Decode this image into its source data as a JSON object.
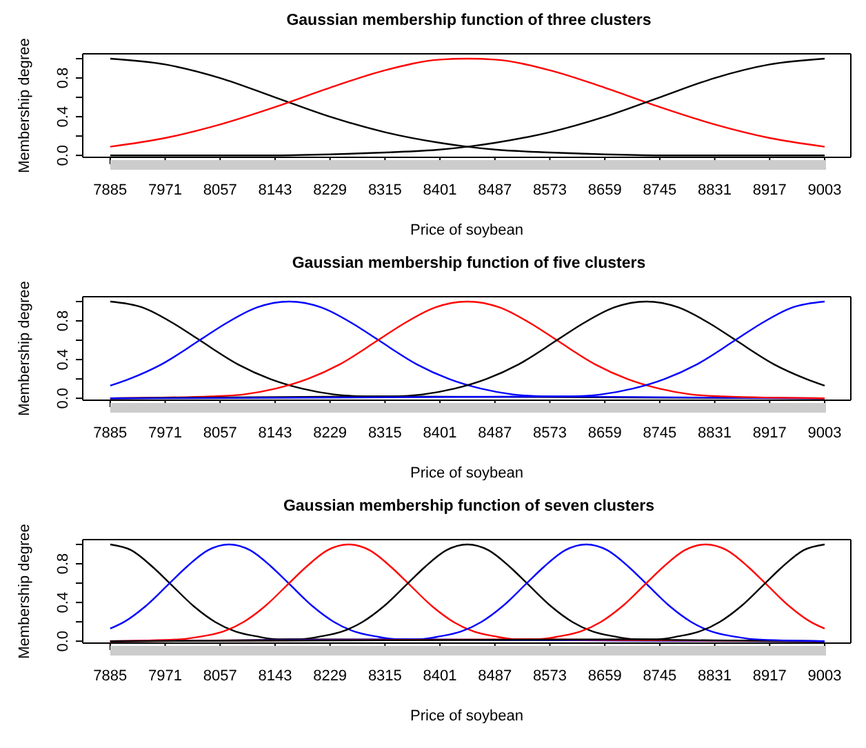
{
  "chart_data": [
    {
      "type": "line",
      "title": "Gaussian membership function of three clusters",
      "xlabel": "Price of soybean",
      "ylabel": "Membership degree",
      "xlim": [
        7842,
        9044
      ],
      "xticks": [
        7885,
        7971,
        8057,
        8143,
        8229,
        8315,
        8401,
        8487,
        8573,
        8659,
        8745,
        8831,
        8917,
        9003
      ],
      "ylim": [
        -0.02,
        1.05
      ],
      "yticks": [
        {
          "value": 0,
          "label": "0.0"
        },
        {
          "value": 0.2,
          "label": null
        },
        {
          "value": 0.4,
          "label": "0.4"
        },
        {
          "value": 0.6,
          "label": null
        },
        {
          "value": 0.8,
          "label": "0.8"
        },
        {
          "value": 1,
          "label": null
        }
      ],
      "series": [
        {
          "color": "#000000",
          "x": [
            7885,
            7971,
            8057,
            8143,
            8229,
            8315,
            8401,
            8444,
            8487,
            8573,
            8659,
            8745,
            8831,
            8917,
            9003
          ],
          "values": [
            1,
            0.94,
            0.8,
            0.6,
            0.4,
            0.24,
            0.13,
            0.09,
            0.06,
            0.03,
            0.01,
            0,
            0,
            0,
            0
          ]
        },
        {
          "color": "#ff0000",
          "x": [
            7885,
            7971,
            8057,
            8143,
            8229,
            8315,
            8401,
            8444,
            8487,
            8573,
            8659,
            8745,
            8831,
            8917,
            9003
          ],
          "values": [
            0.09,
            0.18,
            0.32,
            0.5,
            0.7,
            0.88,
            0.99,
            1,
            0.99,
            0.88,
            0.7,
            0.5,
            0.32,
            0.18,
            0.09
          ]
        },
        {
          "color": "#000000",
          "x": [
            7885,
            7971,
            8057,
            8143,
            8229,
            8315,
            8401,
            8444,
            8487,
            8573,
            8659,
            8745,
            8831,
            8917,
            9003
          ],
          "values": [
            0,
            0,
            0,
            0,
            0.01,
            0.03,
            0.06,
            0.09,
            0.13,
            0.24,
            0.4,
            0.6,
            0.8,
            0.94,
            1
          ]
        }
      ]
    },
    {
      "type": "line",
      "title": "Gaussian membership function of five clusters",
      "xlabel": "Price of soybean",
      "ylabel": "Membership degree",
      "xlim": [
        7842,
        9044
      ],
      "xticks": [
        7885,
        7971,
        8057,
        8143,
        8229,
        8315,
        8401,
        8487,
        8573,
        8659,
        8745,
        8831,
        8917,
        9003
      ],
      "ylim": [
        -0.02,
        1.05
      ],
      "yticks": [
        {
          "value": 0,
          "label": "0.0"
        },
        {
          "value": 0.2,
          "label": null
        },
        {
          "value": 0.4,
          "label": "0.4"
        },
        {
          "value": 0.6,
          "label": null
        },
        {
          "value": 0.8,
          "label": "0.8"
        },
        {
          "value": 1,
          "label": null
        }
      ],
      "series": [
        {
          "color": "#000000",
          "x": [
            7885,
            7935,
            7985,
            8025,
            8085,
            8135,
            8185,
            8235,
            8285,
            9003
          ],
          "values": [
            1,
            0.94,
            0.77,
            0.6,
            0.35,
            0.2,
            0.1,
            0.04,
            0.02,
            0
          ]
        },
        {
          "color": "#0000ff",
          "x": [
            7885,
            7915,
            7965,
            8025,
            8065,
            8115,
            8165,
            8215,
            8265,
            8305,
            8365,
            8415,
            8465,
            8515,
            8565,
            9003
          ],
          "values": [
            0.13,
            0.2,
            0.35,
            0.6,
            0.77,
            0.94,
            1,
            0.94,
            0.77,
            0.6,
            0.35,
            0.2,
            0.1,
            0.04,
            0.02,
            0
          ]
        },
        {
          "color": "#ff0000",
          "x": [
            7885,
            8044,
            8094,
            8144,
            8194,
            8244,
            8304,
            8344,
            8394,
            8444,
            8494,
            8544,
            8584,
            8644,
            8694,
            8744,
            8794,
            8844,
            9003
          ],
          "values": [
            0,
            0.02,
            0.04,
            0.1,
            0.2,
            0.35,
            0.6,
            0.77,
            0.94,
            1,
            0.94,
            0.77,
            0.6,
            0.35,
            0.2,
            0.1,
            0.04,
            0.02,
            0
          ]
        },
        {
          "color": "#000000",
          "x": [
            7885,
            8324,
            8374,
            8424,
            8474,
            8524,
            8584,
            8624,
            8674,
            8724,
            8774,
            8824,
            8864,
            8924,
            8974,
            9003
          ],
          "values": [
            0,
            0.02,
            0.04,
            0.1,
            0.2,
            0.35,
            0.6,
            0.77,
            0.94,
            1,
            0.94,
            0.77,
            0.6,
            0.35,
            0.2,
            0.13
          ]
        },
        {
          "color": "#0000ff",
          "x": [
            7885,
            8603,
            8653,
            8703,
            8753,
            8803,
            8863,
            8903,
            8953,
            9003
          ],
          "values": [
            0,
            0.02,
            0.04,
            0.1,
            0.2,
            0.35,
            0.6,
            0.77,
            0.94,
            1
          ]
        }
      ]
    },
    {
      "type": "line",
      "title": "Gaussian membership function of seven clusters",
      "xlabel": "Price of soybean",
      "ylabel": "Membership degree",
      "xlim": [
        7842,
        9044
      ],
      "xticks": [
        7885,
        7971,
        8057,
        8143,
        8229,
        8315,
        8401,
        8487,
        8573,
        8659,
        8745,
        8831,
        8917,
        9003
      ],
      "ylim": [
        -0.02,
        1.05
      ],
      "yticks": [
        {
          "value": 0,
          "label": "0.0"
        },
        {
          "value": 0.2,
          "label": null
        },
        {
          "value": 0.4,
          "label": "0.4"
        },
        {
          "value": 0.6,
          "label": null
        },
        {
          "value": 0.8,
          "label": "0.8"
        },
        {
          "value": 1,
          "label": null
        }
      ],
      "series": [
        {
          "color": "#000000",
          "x": [
            7885,
            7918,
            7951,
            7978,
            8016,
            8049,
            8081,
            8114,
            8147,
            9003
          ],
          "values": [
            1,
            0.94,
            0.77,
            0.6,
            0.36,
            0.2,
            0.1,
            0.05,
            0.02,
            0
          ]
        },
        {
          "color": "#0000ff",
          "x": [
            7885,
            7907,
            7940,
            7978,
            8005,
            8038,
            8071,
            8104,
            8137,
            8164,
            8202,
            8235,
            8267,
            8300,
            8333,
            9003
          ],
          "values": [
            0.13,
            0.2,
            0.36,
            0.6,
            0.77,
            0.94,
            1,
            0.94,
            0.77,
            0.6,
            0.36,
            0.2,
            0.1,
            0.05,
            0.02,
            0
          ]
        },
        {
          "color": "#ff0000",
          "x": [
            7885,
            7996,
            8029,
            8062,
            8094,
            8127,
            8165,
            8192,
            8225,
            8258,
            8291,
            8324,
            8351,
            8389,
            8422,
            8454,
            8487,
            8520,
            9003
          ],
          "values": [
            0,
            0.02,
            0.05,
            0.1,
            0.2,
            0.36,
            0.6,
            0.77,
            0.94,
            1,
            0.94,
            0.77,
            0.6,
            0.36,
            0.2,
            0.1,
            0.05,
            0.02,
            0
          ]
        },
        {
          "color": "#000000",
          "x": [
            7885,
            8182,
            8215,
            8248,
            8280,
            8313,
            8351,
            8378,
            8411,
            8444,
            8477,
            8510,
            8537,
            8575,
            8608,
            8640,
            8673,
            8706,
            9003
          ],
          "values": [
            0,
            0.02,
            0.05,
            0.1,
            0.2,
            0.36,
            0.6,
            0.77,
            0.94,
            1,
            0.94,
            0.77,
            0.6,
            0.36,
            0.2,
            0.1,
            0.05,
            0.02,
            0
          ]
        },
        {
          "color": "#0000ff",
          "x": [
            7885,
            8368,
            8401,
            8434,
            8466,
            8499,
            8537,
            8564,
            8597,
            8630,
            8663,
            8696,
            8723,
            8761,
            8794,
            8826,
            8859,
            8892,
            9003
          ],
          "values": [
            0,
            0.02,
            0.05,
            0.1,
            0.2,
            0.36,
            0.6,
            0.77,
            0.94,
            1,
            0.94,
            0.77,
            0.6,
            0.36,
            0.2,
            0.1,
            0.05,
            0.02,
            0
          ]
        },
        {
          "color": "#ff0000",
          "x": [
            7885,
            8555,
            8588,
            8621,
            8653,
            8686,
            8724,
            8751,
            8784,
            8817,
            8850,
            8883,
            8910,
            8948,
            8981,
            9003
          ],
          "values": [
            0,
            0.02,
            0.05,
            0.1,
            0.2,
            0.36,
            0.6,
            0.77,
            0.94,
            1,
            0.94,
            0.77,
            0.6,
            0.36,
            0.2,
            0.13
          ]
        },
        {
          "color": "#000000",
          "x": [
            7885,
            8741,
            8774,
            8807,
            8839,
            8872,
            8910,
            8937,
            8970,
            9003
          ],
          "values": [
            0,
            0.02,
            0.05,
            0.1,
            0.2,
            0.36,
            0.6,
            0.77,
            0.94,
            1
          ]
        }
      ]
    }
  ]
}
